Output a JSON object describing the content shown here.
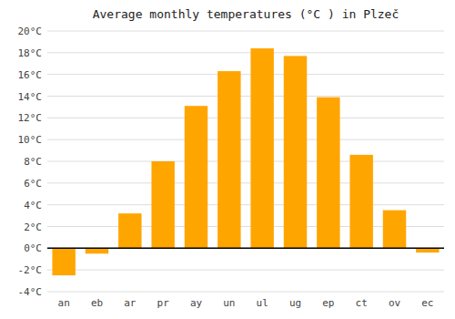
{
  "chart_data": {
    "type": "bar",
    "title": "Average monthly temperatures (°C ) in Plzeč",
    "categories": [
      "an",
      "eb",
      "ar",
      "pr",
      "ay",
      "un",
      "ul",
      "ug",
      "ep",
      "ct",
      "ov",
      "ec"
    ],
    "values": [
      -2.5,
      -0.5,
      3.2,
      8.0,
      13.1,
      16.3,
      18.4,
      17.7,
      13.9,
      8.6,
      3.5,
      -0.4
    ],
    "color": "#FFA500",
    "ylim": [
      -4,
      20
    ],
    "yticks": [
      {
        "value": -4,
        "label": "-4°C"
      },
      {
        "value": -2,
        "label": "-2°C"
      },
      {
        "value": 0,
        "label": "0°C"
      },
      {
        "value": 2,
        "label": "2°C"
      },
      {
        "value": 4,
        "label": "4°C"
      },
      {
        "value": 6,
        "label": "6°C"
      },
      {
        "value": 8,
        "label": "8°C"
      },
      {
        "value": 10,
        "label": "10°C"
      },
      {
        "value": 12,
        "label": "12°C"
      },
      {
        "value": 14,
        "label": "14°C"
      },
      {
        "value": 16,
        "label": "16°C"
      },
      {
        "value": 18,
        "label": "18°C"
      },
      {
        "value": 20,
        "label": "20°C"
      }
    ],
    "grid": true
  }
}
